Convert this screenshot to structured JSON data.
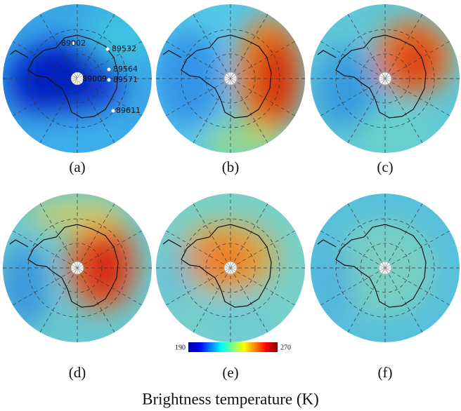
{
  "panels": [
    {
      "label": "(a)"
    },
    {
      "label": "(b)"
    },
    {
      "label": "(c)"
    },
    {
      "label": "(d)"
    },
    {
      "label": "(e)"
    },
    {
      "label": "(f)"
    }
  ],
  "stations": [
    "89002",
    "89532",
    "89564",
    "89571",
    "89009",
    "89611"
  ],
  "colorbar": {
    "min": 190,
    "max": 270
  },
  "caption": "Brightness temperature (K)"
}
